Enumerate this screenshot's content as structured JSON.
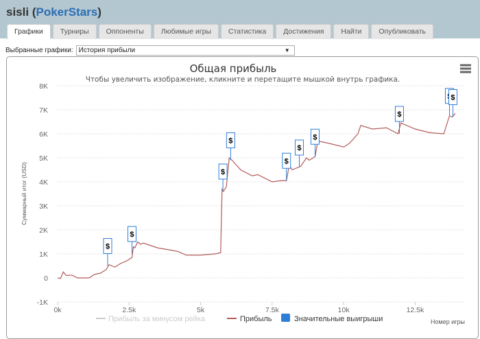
{
  "header": {
    "user": "sisli",
    "site": "PokerStars"
  },
  "tabs": [
    {
      "label": "Графики",
      "active": true
    },
    {
      "label": "Турниры"
    },
    {
      "label": "Оппоненты"
    },
    {
      "label": "Любимые игры"
    },
    {
      "label": "Статистика"
    },
    {
      "label": "Достижения"
    },
    {
      "label": "Найти"
    },
    {
      "label": "Опубликовать"
    }
  ],
  "selector": {
    "label": "Выбранные графики:",
    "value": "История прибыли"
  },
  "menu_icon": "hamburger-menu-icon",
  "chart_data": {
    "type": "line",
    "title": "Общая прибыль",
    "subtitle": "Чтобы увеличить изображение, кликните и перетащите мышкой внутрь графика.",
    "xlabel": "Номер игры",
    "ylabel": "Суммарный итог (USD)",
    "xlim": [
      0,
      14000
    ],
    "ylim": [
      -1000,
      8000
    ],
    "x_ticks": [
      "0k",
      "2.5k",
      "5k",
      "7.5k",
      "10k",
      "12.5k"
    ],
    "y_ticks": [
      "-1K",
      "0",
      "1K",
      "2K",
      "3K",
      "4K",
      "5K",
      "6K",
      "7K",
      "8K"
    ],
    "grid": true,
    "legend_placement": "bottom",
    "legend": [
      {
        "name": "Прибыль за минусом рейка",
        "color": "#cccccc",
        "hidden": true
      },
      {
        "name": "Прибыль",
        "color": "#b35a5a"
      },
      {
        "name": "Значительные выигрыши",
        "color": "#2f7ed8"
      }
    ],
    "series": [
      {
        "name": "Прибыль",
        "color": "#b35a5a",
        "points": [
          [
            0,
            0
          ],
          [
            100,
            -20
          ],
          [
            200,
            250
          ],
          [
            300,
            100
          ],
          [
            500,
            120
          ],
          [
            700,
            0
          ],
          [
            1100,
            0
          ],
          [
            1300,
            150
          ],
          [
            1500,
            200
          ],
          [
            1700,
            350
          ],
          [
            1800,
            550
          ],
          [
            2000,
            450
          ],
          [
            2200,
            600
          ],
          [
            2400,
            700
          ],
          [
            2600,
            850
          ],
          [
            2650,
            1300
          ],
          [
            2700,
            1250
          ],
          [
            2800,
            1500
          ],
          [
            2900,
            1400
          ],
          [
            3000,
            1450
          ],
          [
            3500,
            1250
          ],
          [
            4000,
            1150
          ],
          [
            4200,
            1100
          ],
          [
            4500,
            950
          ],
          [
            5000,
            950
          ],
          [
            5500,
            1000
          ],
          [
            5700,
            1050
          ],
          [
            5750,
            3700
          ],
          [
            5800,
            3600
          ],
          [
            5900,
            3800
          ],
          [
            6000,
            5000
          ],
          [
            6100,
            4900
          ],
          [
            6400,
            4500
          ],
          [
            6800,
            4250
          ],
          [
            7000,
            4300
          ],
          [
            7500,
            4000
          ],
          [
            7800,
            4050
          ],
          [
            8000,
            4050
          ],
          [
            8100,
            4700
          ],
          [
            8200,
            4500
          ],
          [
            8500,
            4650
          ],
          [
            8700,
            5000
          ],
          [
            8800,
            4900
          ],
          [
            9000,
            5050
          ],
          [
            9100,
            5700
          ],
          [
            9500,
            5600
          ],
          [
            10000,
            5450
          ],
          [
            10200,
            5600
          ],
          [
            10500,
            6000
          ],
          [
            10600,
            6350
          ],
          [
            11000,
            6200
          ],
          [
            11500,
            6250
          ],
          [
            11900,
            6000
          ],
          [
            12000,
            6450
          ],
          [
            12500,
            6200
          ],
          [
            13000,
            6050
          ],
          [
            13500,
            6000
          ],
          [
            13700,
            6750
          ],
          [
            13800,
            6700
          ],
          [
            13900,
            6850
          ]
        ]
      }
    ],
    "flags": {
      "label": "$",
      "points": [
        [
          1750,
          500
        ],
        [
          2600,
          1000
        ],
        [
          5780,
          3600
        ],
        [
          6050,
          4900
        ],
        [
          8000,
          4050
        ],
        [
          8450,
          4600
        ],
        [
          9000,
          5050
        ],
        [
          11950,
          6000
        ],
        [
          13700,
          6750
        ],
        [
          13820,
          6700
        ]
      ]
    }
  }
}
